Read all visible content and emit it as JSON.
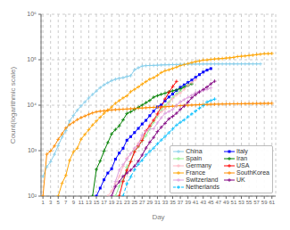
{
  "chart_data": {
    "type": "line",
    "title": "",
    "xlabel": "Day",
    "ylabel": "Count(logarithmic scale)",
    "log": "y",
    "grid": true,
    "legend": "lower right",
    "xlim": [
      0.5,
      62
    ],
    "xticks": [
      1,
      3,
      5,
      7,
      9,
      11,
      13,
      15,
      17,
      19,
      21,
      23,
      25,
      27,
      29,
      31,
      33,
      35,
      37,
      39,
      41,
      43,
      45,
      47,
      49,
      51,
      53,
      55,
      57,
      59,
      61
    ],
    "ylim": [
      100,
      1000000
    ],
    "yticks": [
      {
        "value": 100,
        "label": "10²"
      },
      {
        "value": 1000,
        "label": "10³"
      },
      {
        "value": 10000,
        "label": "10⁴"
      },
      {
        "value": 100000,
        "label": "10⁵"
      },
      {
        "value": 1000000,
        "label": "10⁶"
      }
    ],
    "x": [
      1,
      2,
      3,
      4,
      5,
      6,
      7,
      8,
      9,
      10,
      11,
      12,
      13,
      14,
      15,
      16,
      17,
      18,
      19,
      20,
      21,
      22,
      23,
      24,
      25,
      26,
      27,
      28,
      29,
      30,
      31,
      32,
      33,
      34,
      35,
      36,
      37,
      38,
      39,
      40,
      41,
      42,
      43,
      44,
      45,
      46,
      47,
      48,
      49,
      50,
      51,
      52,
      53,
      54,
      55,
      56,
      57,
      58,
      59,
      60,
      61
    ],
    "series": [
      {
        "name": "China",
        "color": "#87CEEB",
        "marker": "plus",
        "line_style": "solid",
        "values": [
          270,
          440,
          571,
          830,
          1287,
          1975,
          2744,
          4515,
          5974,
          7711,
          9692,
          11791,
          14380,
          17205,
          20438,
          24324,
          28018,
          31161,
          34546,
          37198,
          39215,
          40171,
          42638,
          44653,
          59804,
          66492,
          72436,
          74185,
          74576,
          75077,
          75700,
          76677,
          77150,
          77658,
          78064,
          78497,
          78824,
          79251,
          79824,
          80026,
          80151,
          80270,
          80409,
          80552,
          80651,
          80695,
          80735,
          80754,
          80775,
          80793,
          80813,
          80824,
          80844,
          80860,
          80868,
          80878,
          80887,
          80894,
          null,
          null,
          null
        ]
      },
      {
        "name": "Italy",
        "color": "#0000FF",
        "marker": "square",
        "line_style": "solid",
        "values": [
          null,
          null,
          null,
          null,
          null,
          null,
          null,
          null,
          null,
          null,
          null,
          null,
          null,
          null,
          100,
          150,
          229,
          322,
          400,
          650,
          888,
          1128,
          1694,
          2036,
          2502,
          3089,
          3858,
          4636,
          5883,
          7375,
          9172,
          10149,
          12462,
          15113,
          17660,
          21157,
          24747,
          27980,
          31506,
          35713,
          41035,
          47021,
          53578,
          59138,
          63927,
          null,
          null,
          null,
          null,
          null,
          null,
          null,
          null,
          null,
          null,
          null,
          null,
          null,
          null,
          null,
          null
        ]
      },
      {
        "name": "Spain",
        "color": "#90EE90",
        "marker": "plus",
        "line_style": "solid",
        "values": [
          null,
          null,
          null,
          null,
          null,
          null,
          null,
          null,
          null,
          null,
          null,
          null,
          null,
          null,
          null,
          null,
          null,
          null,
          null,
          100,
          165,
          222,
          430,
          589,
          999,
          1204,
          1639,
          2140,
          3004,
          4231,
          5753,
          7798,
          9942,
          11748,
          14769,
          17963,
          20410,
          25374,
          28768,
          null,
          null,
          null,
          null,
          null,
          null,
          null,
          null,
          null,
          null,
          null,
          null,
          null,
          null,
          null,
          null,
          null,
          null,
          null,
          null,
          null,
          null
        ]
      },
      {
        "name": "Iran",
        "color": "#008000",
        "marker": "plus",
        "line_style": "solid",
        "values": [
          null,
          null,
          null,
          null,
          null,
          null,
          null,
          null,
          null,
          null,
          null,
          null,
          null,
          100,
          388,
          593,
          978,
          1501,
          2336,
          2922,
          3513,
          4747,
          6566,
          7161,
          8042,
          9000,
          10075,
          11364,
          12729,
          14991,
          16169,
          17361,
          18407,
          19644,
          20610,
          21638,
          23049,
          24811,
          27017,
          29406,
          null,
          null,
          null,
          null,
          null,
          null,
          null,
          null,
          null,
          null,
          null,
          null,
          null,
          null,
          null,
          null,
          null,
          null,
          null,
          null,
          null
        ]
      },
      {
        "name": "Germany",
        "color": "#FFB6C1",
        "marker": "plus",
        "line_style": "solid",
        "values": [
          null,
          null,
          null,
          null,
          null,
          null,
          null,
          null,
          null,
          null,
          null,
          null,
          null,
          null,
          null,
          null,
          null,
          100,
          130,
          188,
          268,
          454,
          684,
          847,
          1112,
          1460,
          1966,
          2745,
          3675,
          4838,
          6012,
          7156,
          8198,
          10999,
          13957,
          16662,
          18610,
          22213,
          27436,
          31554,
          36508,
          null,
          null,
          null,
          null,
          null,
          null,
          null,
          null,
          null,
          null,
          null,
          null,
          null,
          null,
          null,
          null,
          null,
          null,
          null,
          null
        ]
      },
      {
        "name": "USA",
        "color": "#FF0000",
        "marker": "plus",
        "line_style": "solid",
        "values": [
          null,
          null,
          null,
          null,
          null,
          null,
          null,
          null,
          null,
          null,
          null,
          null,
          null,
          null,
          null,
          null,
          null,
          null,
          null,
          null,
          100,
          213,
          370,
          574,
          942,
          1264,
          1678,
          2727,
          3499,
          4632,
          6421,
          9197,
          13677,
          19100,
          25600,
          33404,
          null,
          null,
          null,
          null,
          null,
          null,
          null,
          null,
          null,
          null,
          null,
          null,
          null,
          null,
          null,
          null,
          null,
          null,
          null,
          null,
          null,
          null,
          null,
          null,
          null
        ]
      },
      {
        "name": "France",
        "color": "#FFA500",
        "marker": "plus",
        "line_style": "solid",
        "values": [
          null,
          null,
          null,
          null,
          100,
          191,
          285,
          613,
          949,
          1126,
          1784,
          2281,
          2876,
          3661,
          4499,
          5423,
          6633,
          7730,
          9134,
          10995,
          12612,
          14459,
          16018,
          19856,
          22304,
          25233,
          29155,
          32964,
          37575,
          40174,
          45170,
          52128,
          56989,
          59929,
          64338,
          68605,
          74390,
          78167,
          82048,
          86334,
          90676,
          93790,
          98010,
          98984,
          101752,
          104015,
          105155,
          106206,
          108847,
          110070,
          112950,
          117324,
          119151,
          121013,
          124114,
          126168,
          129634,
          132591,
          135065,
          135993,
          137150
        ]
      },
      {
        "name": "SouthKorea",
        "color": "#FF8C00",
        "marker": "plus",
        "line_style": "solid",
        "values": [
          100,
          833,
          977,
          1261,
          1766,
          2337,
          3150,
          3736,
          4212,
          4812,
          5328,
          5766,
          6284,
          6767,
          7134,
          7382,
          7513,
          7755,
          7869,
          7979,
          8086,
          8162,
          8236,
          8320,
          8413,
          8565,
          8652,
          8799,
          8897,
          8961,
          9037,
          9137,
          9241,
          9332,
          9478,
          9661,
          9786,
          9887,
          9976,
          10062,
          10156,
          10284,
          10331,
          10384,
          10450,
          10512,
          10564,
          10613,
          10653,
          10683,
          10718,
          10728,
          10765,
          10793,
          10810,
          10840,
          10874,
          10909,
          10936,
          10962,
          10984
        ]
      },
      {
        "name": "Switzerland",
        "color": "#DDA0DD",
        "marker": "plus",
        "line_style": "solid",
        "values": [
          null,
          null,
          null,
          null,
          null,
          null,
          null,
          null,
          null,
          null,
          null,
          null,
          null,
          null,
          null,
          null,
          null,
          null,
          100,
          210,
          374,
          491,
          652,
          858,
          1139,
          1359,
          2200,
          2700,
          3010,
          3028,
          4075,
          5294,
          6575,
          7245,
          8060,
          9877,
          11811,
          13213,
          14829,
          16605,
          18827,
          20278,
          21100,
          22253,
          24051,
          null,
          null,
          null,
          null,
          null,
          null,
          null,
          null,
          null,
          null,
          null,
          null,
          null,
          null,
          null,
          null
        ]
      },
      {
        "name": "UK",
        "color": "#800080",
        "marker": "plus",
        "line_style": "solid",
        "values": [
          null,
          null,
          null,
          null,
          null,
          null,
          null,
          null,
          null,
          null,
          null,
          null,
          null,
          null,
          null,
          null,
          null,
          null,
          100,
          163,
          206,
          273,
          321,
          373,
          456,
          590,
          800,
          1140,
          1543,
          1950,
          2626,
          3269,
          3983,
          5018,
          5683,
          6650,
          8077,
          9529,
          11658,
          14543,
          17089,
          19522,
          22141,
          25150,
          29474,
          33718,
          null,
          null,
          null,
          null,
          null,
          null,
          null,
          null,
          null,
          null,
          null,
          null,
          null,
          null,
          null
        ]
      },
      {
        "name": "Netherlands",
        "color": "#00BFFF",
        "marker": "plus",
        "line_style": "dashed",
        "values": [
          null,
          null,
          null,
          null,
          null,
          null,
          null,
          null,
          null,
          null,
          null,
          null,
          null,
          null,
          null,
          null,
          null,
          null,
          null,
          null,
          null,
          100,
          188,
          265,
          382,
          503,
          614,
          804,
          959,
          1135,
          1414,
          1708,
          2056,
          2460,
          2994,
          3640,
          4204,
          4749,
          5560,
          6412,
          7431,
          8603,
          9762,
          11750,
          12667,
          13614,
          null,
          null,
          null,
          null,
          null,
          null,
          null,
          null,
          null,
          null,
          null,
          null,
          null,
          null,
          null
        ]
      }
    ]
  }
}
